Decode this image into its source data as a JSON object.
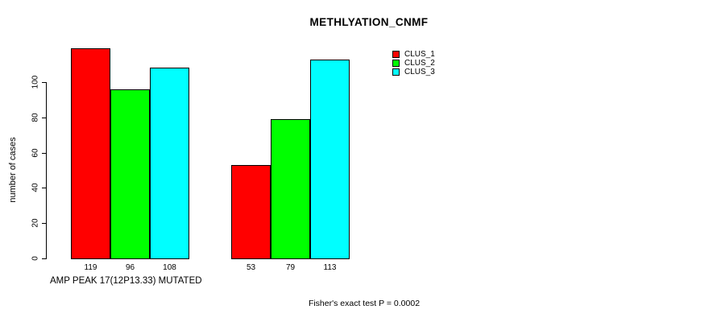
{
  "title": "METHLYATION_CNMF",
  "y_axis": {
    "label": "number of cases"
  },
  "x_axis": {
    "label": "AMP PEAK 17(12P13.33) MUTATED"
  },
  "footnote": "Fisher's exact test P = 0.0002",
  "colors": {
    "background": "#FFFFFF",
    "axis": "#000000",
    "bar_border": "#000000",
    "clus_1": "#FF0000",
    "clus_2": "#00FF00",
    "clus_3": "#00FFFF"
  },
  "chart_data": {
    "type": "bar",
    "title": "METHLYATION_CNMF",
    "ylabel": "number of cases",
    "xlabel": "AMP PEAK 17(12P13.33) MUTATED",
    "ylim": [
      0,
      100
    ],
    "yticks": [
      0,
      20,
      40,
      60,
      80,
      100
    ],
    "grid": false,
    "legend_position": "top-right",
    "groups": 2,
    "series": [
      {
        "name": "CLUS_1",
        "color": "#FF0000",
        "values": [
          119,
          53
        ]
      },
      {
        "name": "CLUS_2",
        "color": "#00FF00",
        "values": [
          96,
          79
        ]
      },
      {
        "name": "CLUS_3",
        "color": "#00FFFF",
        "values": [
          108,
          113
        ]
      }
    ],
    "bar_value_labels": [
      [
        119,
        96,
        108
      ],
      [
        53,
        79,
        113
      ]
    ],
    "legend": [
      {
        "label": "CLUS_1",
        "color": "#FF0000"
      },
      {
        "label": "CLUS_2",
        "color": "#00FF00"
      },
      {
        "label": "CLUS_3",
        "color": "#00FFFF"
      }
    ],
    "annotation": "Fisher's exact test P = 0.0002"
  }
}
